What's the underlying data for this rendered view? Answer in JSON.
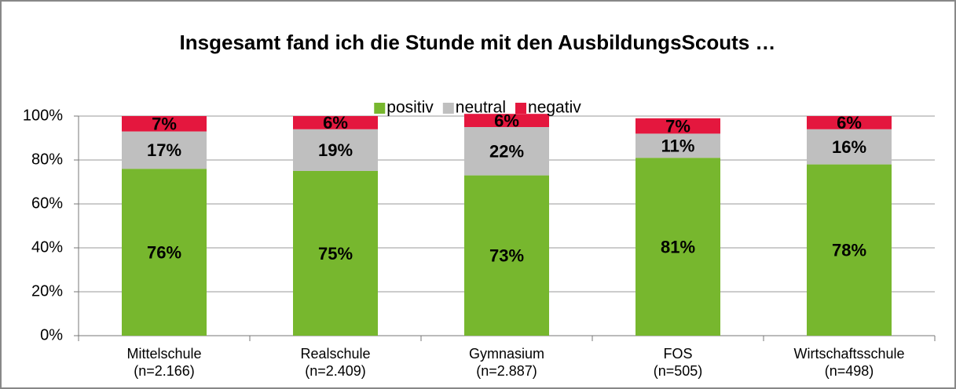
{
  "chart_data": {
    "type": "stacked_bar",
    "title": "Insgesamt fand ich die Stunde mit den AusbildungsScouts …",
    "categories": [
      [
        "Mittelschule",
        "(n=2.166)"
      ],
      [
        "Realschule",
        "(n=2.409)"
      ],
      [
        "Gymnasium",
        "(n=2.887)"
      ],
      [
        "FOS",
        "(n=505)"
      ],
      [
        "Wirtschaftsschule",
        "(n=498)"
      ]
    ],
    "series": [
      {
        "name": "positiv",
        "color": "#77b72e",
        "values": [
          76,
          75,
          73,
          81,
          78
        ],
        "value_labels": [
          "76%",
          "75%",
          "73%",
          "81%",
          "78%"
        ]
      },
      {
        "name": "neutral",
        "color": "#bfbfbf",
        "values": [
          17,
          19,
          22,
          11,
          16
        ],
        "value_labels": [
          "17%",
          "19%",
          "22%",
          "11%",
          "16%"
        ]
      },
      {
        "name": "negativ",
        "color": "#e4173e",
        "values": [
          7,
          6,
          6,
          7,
          6
        ],
        "value_labels": [
          "7%",
          "6%",
          "6%",
          "7%",
          "6%"
        ]
      }
    ],
    "ylim": [
      0,
      100
    ],
    "yticks": [
      {
        "value": 0,
        "label": "0%"
      },
      {
        "value": 20,
        "label": "20%"
      },
      {
        "value": 40,
        "label": "40%"
      },
      {
        "value": 60,
        "label": "60%"
      },
      {
        "value": 80,
        "label": "80%"
      },
      {
        "value": 100,
        "label": "100%"
      }
    ],
    "grid": true,
    "legend": "top"
  }
}
